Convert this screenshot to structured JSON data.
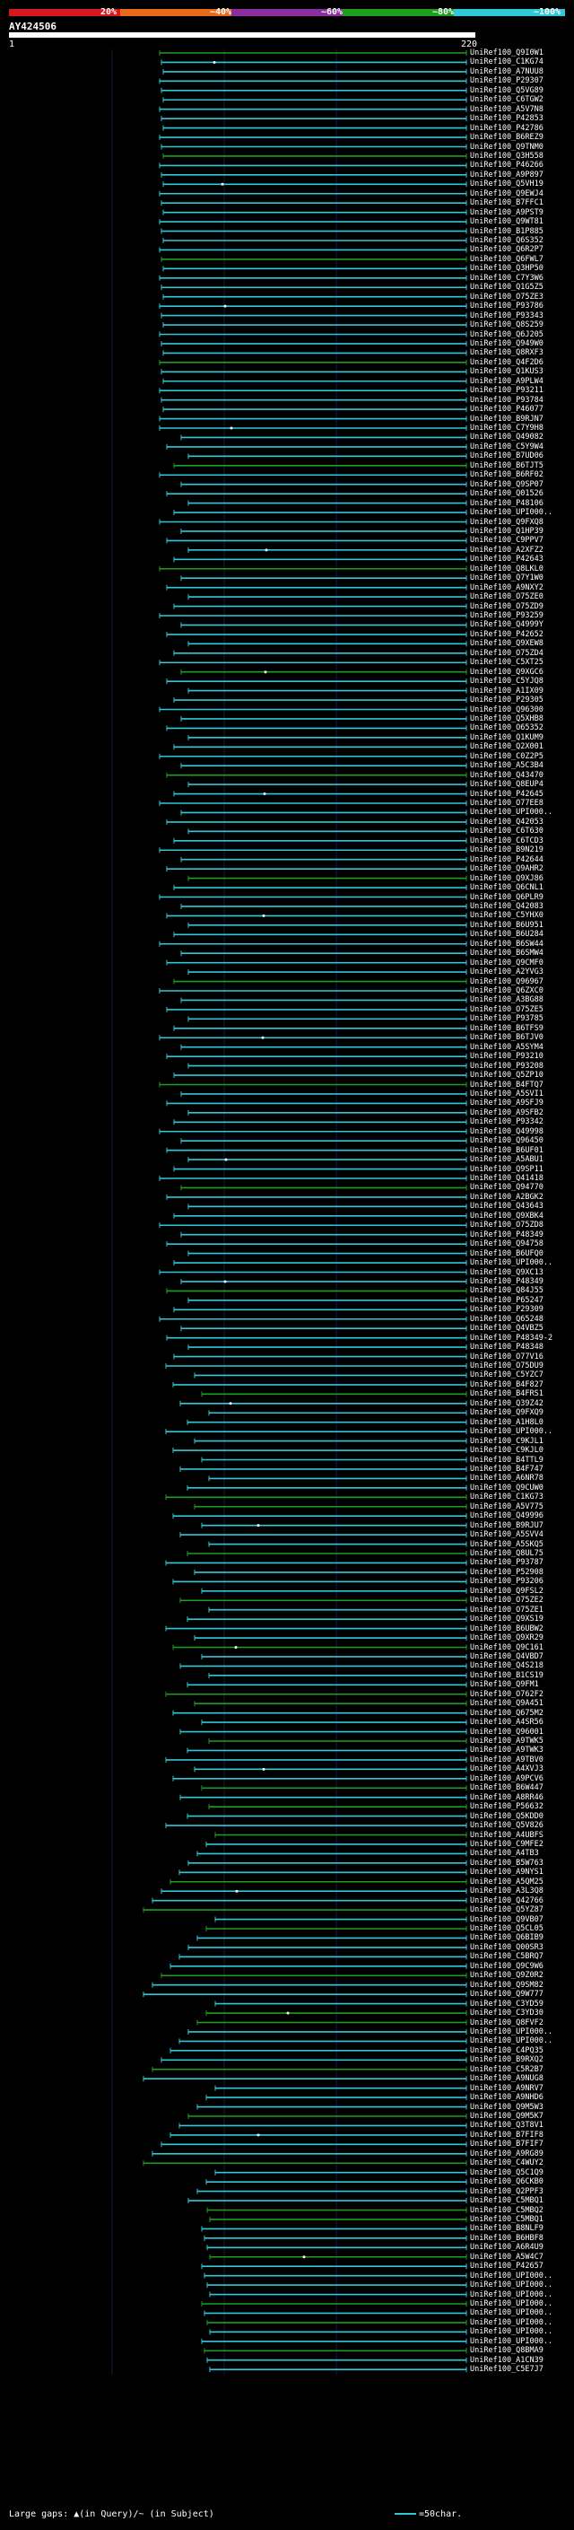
{
  "legend": {
    "segments": [
      {
        "label": "20%",
        "color": "#d7191c"
      },
      {
        "label": "~40%",
        "color": "#e66a1a"
      },
      {
        "label": "~60%",
        "color": "#8b2fa0"
      },
      {
        "label": "~80%",
        "color": "#1e9e1e"
      },
      {
        "label": "~100%",
        "color": "#2ec8d8"
      }
    ]
  },
  "query": {
    "title": "AY424506",
    "start": "1",
    "end": "220"
  },
  "hits": {
    "start_number": 1,
    "labels": [
      "UniRef100_Q9I0W1",
      "UniRef100_C1KG74",
      "UniRef100_A7NUU8",
      "UniRef100_P29307",
      "UniRef100_Q5VG89",
      "UniRef100_C6TGW2",
      "UniRef100_A5V7N8",
      "UniRef100_P42853",
      "UniRef100_P42786",
      "UniRef100_B6REZ9",
      "UniRef100_Q9TNM0",
      "UniRef100_Q3H558",
      "UniRef100_P46266",
      "UniRef100_A9P897",
      "UniRef100_Q5VH19",
      "UniRef100_Q9EWJ4",
      "UniRef100_B7FFC1",
      "UniRef100_A9PST9",
      "UniRef100_Q9WT81",
      "UniRef100_B1P885",
      "UniRef100_Q6S352",
      "UniRef100_Q6R2P7",
      "UniRef100_Q6FWL7",
      "UniRef100_Q3HP50",
      "UniRef100_C7Y3W6",
      "UniRef100_Q1G5Z5",
      "UniRef100_O75ZE3",
      "UniRef100_P93786",
      "UniRef100_P93343",
      "UniRef100_Q8S259",
      "UniRef100_Q6J205",
      "UniRef100_Q949W0",
      "UniRef100_Q8RXF3",
      "UniRef100_Q4F2D6",
      "UniRef100_Q1KUS3",
      "UniRef100_A9PLW4",
      "UniRef100_P93211",
      "UniRef100_P93784",
      "UniRef100_P46077",
      "UniRef100_B9RJN7",
      "UniRef100_C7Y9H8",
      "UniRef100_Q49082",
      "UniRef100_C5Y9W4",
      "UniRef100_B7UD06",
      "UniRef100_B6TJT5",
      "UniRef100_B6RF02",
      "UniRef100_Q9SP07",
      "UniRef100_Q01526",
      "UniRef100_P48106",
      "UniRef100_UPI000..",
      "UniRef100_Q9FXQ8",
      "UniRef100_Q1HP39",
      "UniRef100_C9PPV7",
      "UniRef100_A2XFZ2",
      "UniRef100_P42643",
      "UniRef100_Q8LKL0",
      "UniRef100_Q7Y1W0",
      "UniRef100_A9NXY2",
      "UniRef100_O75ZE0",
      "UniRef100_O75ZD9",
      "UniRef100_P93259",
      "UniRef100_Q4999Y",
      "UniRef100_P42652",
      "UniRef100_Q9XEW8",
      "UniRef100_O75ZD4",
      "UniRef100_C5XT25",
      "UniRef100_Q9XGC6",
      "UniRef100_C5YJQ8",
      "UniRef100_A1IX09",
      "UniRef100_P29305",
      "UniRef100_Q96300",
      "UniRef100_Q5XHB8",
      "UniRef100_O65352",
      "UniRef100_Q1KUM9",
      "UniRef100_Q2X001",
      "UniRef100_C0Z2P5",
      "UniRef100_A5C3B4",
      "UniRef100_Q43470",
      "UniRef100_Q8EUP4",
      "UniRef100_P42645",
      "UniRef100_O77EE8",
      "UniRef100_UPI000..",
      "UniRef100_Q42053",
      "UniRef100_C6T630",
      "UniRef100_C6TCD3",
      "UniRef100_B9N219",
      "UniRef100_P42644",
      "UniRef100_Q9AHR2",
      "UniRef100_Q9XJ86",
      "UniRef100_Q6CNL1",
      "UniRef100_Q6PLR9",
      "UniRef100_Q42083",
      "UniRef100_C5YHX0",
      "UniRef100_B6U951",
      "UniRef100_B6U284",
      "UniRef100_B6SW44",
      "UniRef100_B6SMW4",
      "UniRef100_Q9CMF0",
      "UniRef100_A2YVG3",
      "UniRef100_Q96967",
      "UniRef100_Q6ZXC0",
      "UniRef100_A3BG88",
      "UniRef100_O75ZE5",
      "UniRef100_P93785",
      "UniRef100_B6TFS9",
      "UniRef100_B6TJV0",
      "UniRef100_A5SYM4",
      "UniRef100_P93210",
      "UniRef100_P93208",
      "UniRef100_Q5ZP10",
      "UniRef100_B4FTQ7",
      "UniRef100_A5SVI1",
      "UniRef100_A9SFJ9",
      "UniRef100_A9SFB2",
      "UniRef100_P93342",
      "UniRef100_Q49998",
      "UniRef100_Q96450",
      "UniRef100_B6UF01",
      "UniRef100_A5ABU1",
      "UniRef100_Q9SP11",
      "UniRef100_Q41418",
      "UniRef100_Q94770",
      "UniRef100_A2BGK2",
      "UniRef100_Q43643",
      "UniRef100_Q9XBK4",
      "UniRef100_O75ZD8",
      "UniRef100_P48349",
      "UniRef100_Q94758",
      "UniRef100_B6UFQ0",
      "UniRef100_UPI000..",
      "UniRef100_Q9XC13",
      "UniRef100_P48349",
      "UniRef100_Q84J55",
      "UniRef100_P65247",
      "UniRef100_P29309",
      "UniRef100_Q65248",
      "UniRef100_Q4VBZ5",
      "UniRef100_P48349-2",
      "UniRef100_P48348",
      "UniRef100_O77V16",
      "UniRef100_O75DU9",
      "UniRef100_C5YZC7",
      "UniRef100_B4F827",
      "UniRef100_B4FRS1",
      "UniRef100_Q39Z42",
      "UniRef100_Q9FXQ9",
      "UniRef100_A1H8L0",
      "UniRef100_UPI000..",
      "UniRef100_C9KJL1",
      "UniRef100_C9KJL0",
      "UniRef100_B4TTL9",
      "UniRef100_B4F747",
      "UniRef100_A6NR78",
      "UniRef100_Q9CUW0",
      "UniRef100_C1KG73",
      "UniRef100_A5V775",
      "UniRef100_Q49996",
      "UniRef100_B9RJU7",
      "UniRef100_A5SVV4",
      "UniRef100_A5SKQ5",
      "UniRef100_Q8UL75",
      "UniRef100_P93787",
      "UniRef100_P52908",
      "UniRef100_P93206",
      "UniRef100_Q9FSL2",
      "UniRef100_O75ZE2",
      "UniRef100_O75ZE1",
      "UniRef100_Q9XS19",
      "UniRef100_B6UBW2",
      "UniRef100_Q9XR29",
      "UniRef100_Q9C161",
      "UniRef100_Q4VBD7",
      "UniRef100_Q4S218",
      "UniRef100_B1CS19",
      "UniRef100_Q9FM1",
      "UniRef100_O762F2",
      "UniRef100_Q9A451",
      "UniRef100_Q675M2",
      "UniRef100_A4SR56",
      "UniRef100_Q96001",
      "UniRef100_A9TWK5",
      "UniRef100_A9TWK3",
      "UniRef100_A9TBV0",
      "UniRef100_A4XVJ3",
      "UniRef100_A9PCV6",
      "UniRef100_B6W447",
      "UniRef100_A8RR46",
      "UniRef100_P56632",
      "UniRef100_Q5KDD0",
      "UniRef100_Q5V826",
      "UniRef100_A4UBFS",
      "UniRef100_C9MFE2",
      "UniRef100_A4TB3",
      "UniRef100_B5W763",
      "UniRef100_A9NYS1",
      "UniRef100_A5QM25",
      "UniRef100_A3L3Q8",
      "UniRef100_Q42766",
      "UniRef100_Q5YZ87",
      "UniRef100_Q9VB07",
      "UniRef100_Q5CL05",
      "UniRef100_Q6BIB9",
      "UniRef100_Q00SR3",
      "UniRef100_C5BRQ7",
      "UniRef100_Q9C9W6",
      "UniRef100_Q9Z0R2",
      "UniRef100_Q9SM82",
      "UniRef100_Q9W777",
      "UniRef100_C3YD59",
      "UniRef100_C3YD30",
      "UniRef100_Q8FVF2",
      "UniRef100_UPI000..",
      "UniRef100_UPI000..",
      "UniRef100_C4PQ35",
      "UniRef100_B9RXQ2",
      "UniRef100_C5R2B7",
      "UniRef100_A9NUG8",
      "UniRef100_A9NRV7",
      "UniRef100_A9NHD6",
      "UniRef100_Q9M5W3",
      "UniRef100_Q9M5K7",
      "UniRef100_Q3T8V1",
      "UniRef100_B7FIF8",
      "UniRef100_B7FIF7",
      "UniRef100_A9RG89",
      "UniRef100_C4WUY2",
      "UniRef100_Q5C1Q9",
      "UniRef100_Q6CKB0",
      "UniRef100_Q2PPF3",
      "UniRef100_C5MBQ1",
      "UniRef100_C5MBQ2",
      "UniRef100_C5MBQ1",
      "UniRef100_B8NLF9",
      "UniRef100_B6HBF8",
      "UniRef100_A6R4U9",
      "UniRef100_A5W4C7",
      "UniRef100_P42657",
      "UniRef100_UPI000..",
      "UniRef100_UPI000..",
      "UniRef100_UPI000..",
      "UniRef100_UPI000..",
      "UniRef100_UPI000..",
      "UniRef100_UPI000..",
      "UniRef100_UPI000..",
      "UniRef100_UPI000..",
      "UniRef100_Q8BMA9",
      "UniRef100_A1CN39",
      "UniRef100_C5E7J7"
    ]
  },
  "footer": {
    "text": "Large gaps: ▲(in Query)/~ (in Subject)",
    "key": "=50char."
  }
}
